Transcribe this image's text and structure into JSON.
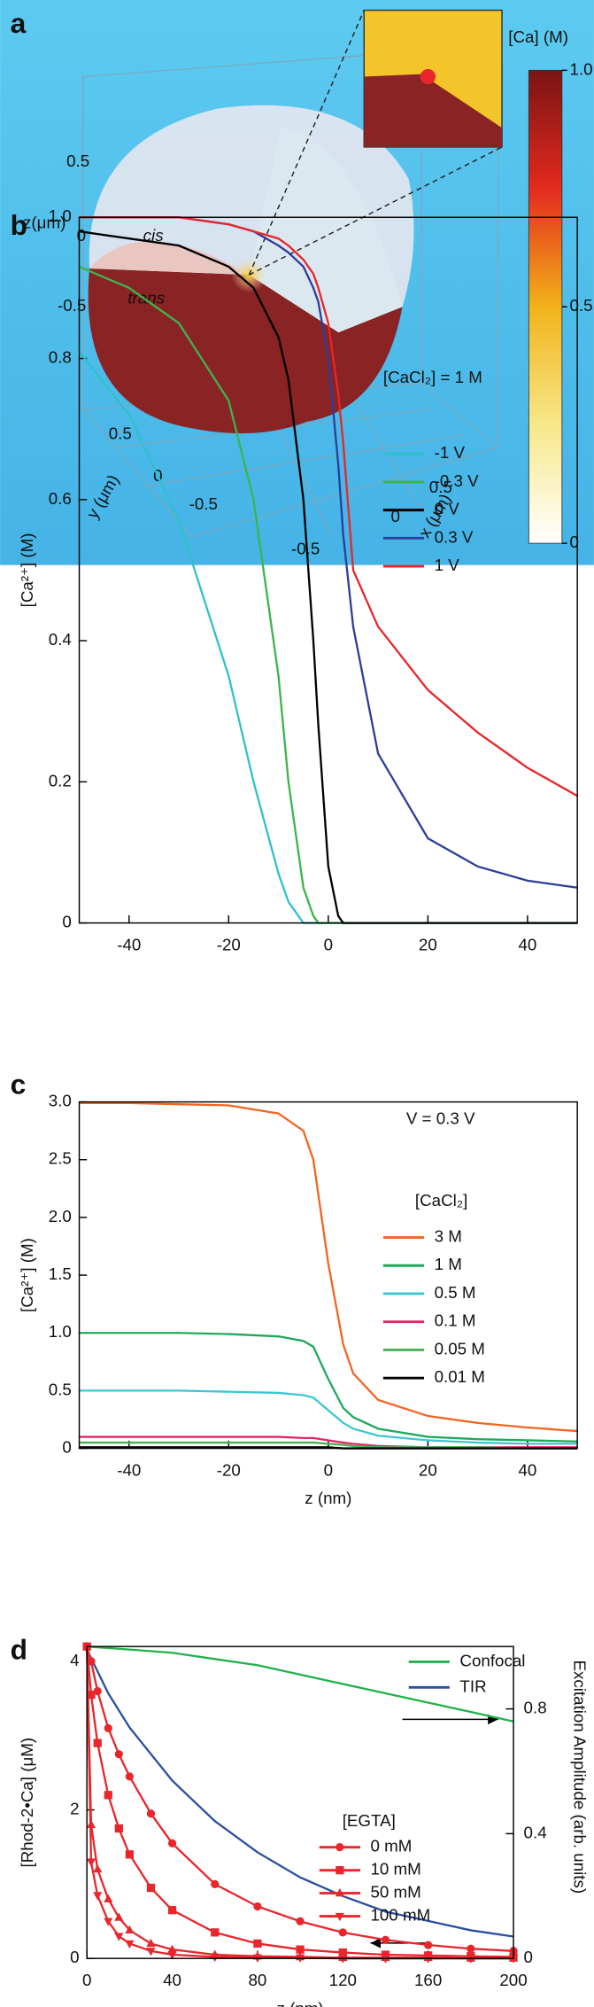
{
  "panel_a": {
    "label": "a",
    "colorbar": {
      "title": "[Ca] (M)",
      "lim": [
        0,
        1
      ],
      "ticks": [
        {
          "value": 1,
          "label": "1.0"
        },
        0.5,
        0
      ]
    },
    "axes": {
      "z": {
        "label": "z(μm)",
        "ticks": [
          0.5,
          0,
          -0.5
        ]
      },
      "y": {
        "label": "y (μm)",
        "ticks": [
          0.5,
          0,
          -0.5
        ]
      },
      "x": {
        "label": "x (μm)",
        "ticks": [
          0.5,
          0,
          -0.5
        ]
      }
    },
    "regions": [
      "cis",
      "trans"
    ]
  },
  "chart_data": [
    {
      "label": "b",
      "type": "line",
      "ylabel": "[Ca²⁺] (M)",
      "annotation": "[CaCl₂] = 1 M",
      "xlim": [
        -50,
        50
      ],
      "xticks": [
        -40,
        -20,
        0,
        20,
        40
      ],
      "ylim": [
        0,
        1
      ],
      "yticks": [
        0,
        0.2,
        0.4,
        0.6,
        0.8,
        {
          "value": 1,
          "label": "1.0"
        }
      ],
      "x": [
        -50,
        -40,
        -30,
        -20,
        -15,
        -10,
        -8,
        -5,
        -3,
        -2,
        0,
        2,
        3,
        5,
        10,
        20,
        30,
        40,
        50
      ],
      "series": [
        {
          "name": "-1 V",
          "color": "#2fc1c9",
          "values": [
            0.81,
            0.72,
            0.57,
            0.35,
            0.2,
            0.07,
            0.03,
            0,
            0,
            0,
            0,
            0,
            0,
            0,
            0,
            0,
            0,
            0,
            0
          ]
        },
        {
          "name": "-0.3 V",
          "color": "#3cb54a",
          "values": [
            0.93,
            0.9,
            0.85,
            0.74,
            0.6,
            0.35,
            0.2,
            0.05,
            0.01,
            0,
            0,
            0,
            0,
            0,
            0,
            0,
            0,
            0,
            0
          ]
        },
        {
          "name": "0 V",
          "color": "#000000",
          "values": [
            0.98,
            0.97,
            0.96,
            0.93,
            0.9,
            0.83,
            0.77,
            0.6,
            0.4,
            0.28,
            0.08,
            0.01,
            0,
            0,
            0,
            0,
            0,
            0,
            0
          ]
        },
        {
          "name": "0.3 V",
          "color": "#2c3e9a",
          "values": [
            1,
            1,
            1,
            0.99,
            0.98,
            0.96,
            0.95,
            0.93,
            0.9,
            0.88,
            0.8,
            0.65,
            0.55,
            0.42,
            0.24,
            0.12,
            0.08,
            0.06,
            0.05
          ]
        },
        {
          "name": "1 V",
          "color": "#e8262b",
          "values": [
            1,
            1,
            1,
            0.99,
            0.98,
            0.97,
            0.96,
            0.94,
            0.92,
            0.9,
            0.85,
            0.75,
            0.68,
            0.5,
            0.42,
            0.33,
            0.27,
            0.22,
            0.18
          ]
        }
      ]
    },
    {
      "label": "c",
      "type": "line",
      "ylabel": "[Ca²⁺] (M)",
      "xlabel": "z (nm)",
      "annotation": "V = 0.3 V",
      "legend_title": "[CaCl₂]",
      "xlim": [
        -50,
        50
      ],
      "xticks": [
        -40,
        -20,
        0,
        20,
        40
      ],
      "ylim": [
        0,
        3
      ],
      "yticks": [
        0,
        0.5,
        {
          "value": 1,
          "label": "1.0"
        },
        1.5,
        {
          "value": 2,
          "label": "2.0"
        },
        2.5,
        {
          "value": 3,
          "label": "3.0"
        }
      ],
      "x": [
        -50,
        -40,
        -30,
        -20,
        -10,
        -5,
        -3,
        0,
        3,
        5,
        10,
        20,
        30,
        40,
        50
      ],
      "series": [
        {
          "name": "3  M",
          "color": "#f26522",
          "values": [
            2.99,
            2.99,
            2.98,
            2.97,
            2.9,
            2.75,
            2.5,
            1.6,
            0.9,
            0.65,
            0.42,
            0.28,
            0.22,
            0.18,
            0.15
          ]
        },
        {
          "name": "1 M",
          "color": "#1fa95a",
          "values": [
            1,
            1,
            1,
            0.99,
            0.97,
            0.93,
            0.88,
            0.6,
            0.35,
            0.27,
            0.17,
            0.1,
            0.08,
            0.07,
            0.06
          ]
        },
        {
          "name": "0.5 M",
          "color": "#3dc6d3",
          "values": [
            0.5,
            0.5,
            0.5,
            0.49,
            0.48,
            0.46,
            0.44,
            0.33,
            0.22,
            0.17,
            0.11,
            0.07,
            0.05,
            0.04,
            0.04
          ]
        },
        {
          "name": "0.1 M",
          "color": "#e3256b",
          "values": [
            0.1,
            0.1,
            0.1,
            0.1,
            0.1,
            0.09,
            0.09,
            0.07,
            0.05,
            0.04,
            0.02,
            0.01,
            0.01,
            0.01,
            0.01
          ]
        },
        {
          "name": "0.05 M",
          "color": "#4caf50",
          "values": [
            0.05,
            0.05,
            0.05,
            0.05,
            0.05,
            0.05,
            0.05,
            0.04,
            0.03,
            0.02,
            0.01,
            0.01,
            0.01,
            0,
            0
          ]
        },
        {
          "name": "0.01 M",
          "color": "#000000",
          "values": [
            0.01,
            0.01,
            0.01,
            0.01,
            0.01,
            0.01,
            0.01,
            0.01,
            0,
            0,
            0,
            0,
            0,
            0,
            0
          ]
        }
      ]
    },
    {
      "label": "d",
      "type": "line",
      "ylabel": "[Rhod-2•Ca] (μM)",
      "y2label": "Excitation Amplitude (arb. units)",
      "xlabel": "z (nm)",
      "legend_title": "[EGTA]",
      "xlim": [
        0,
        200
      ],
      "xticks": [
        0,
        40,
        80,
        120,
        160,
        200
      ],
      "ylim": [
        0,
        4.2
      ],
      "yticks": [
        0,
        2,
        4
      ],
      "y2lim": [
        0,
        1
      ],
      "y2ticks": [
        0,
        0.4,
        0.8
      ],
      "series": [
        {
          "name": "Confocal",
          "color": "#22b24c",
          "axis": "y2",
          "x": [
            0,
            20,
            40,
            60,
            80,
            100,
            120,
            140,
            160,
            180,
            200
          ],
          "values": [
            1,
            0.99,
            0.98,
            0.96,
            0.94,
            0.91,
            0.88,
            0.85,
            0.82,
            0.79,
            0.76
          ]
        },
        {
          "name": "TIR",
          "color": "#2b4ea2",
          "axis": "y2",
          "x": [
            0,
            10,
            20,
            40,
            60,
            80,
            100,
            120,
            140,
            160,
            180,
            200
          ],
          "values": [
            0.99,
            0.85,
            0.74,
            0.57,
            0.44,
            0.34,
            0.26,
            0.2,
            0.15,
            0.12,
            0.09,
            0.07
          ]
        },
        {
          "name": "0 mM",
          "color": "#e8262b",
          "marker": "circle",
          "x": [
            0,
            2,
            5,
            10,
            15,
            20,
            30,
            40,
            60,
            80,
            100,
            120,
            140,
            160,
            180,
            200
          ],
          "values": [
            4.2,
            4,
            3.6,
            3.1,
            2.75,
            2.45,
            1.95,
            1.55,
            1,
            0.7,
            0.5,
            0.35,
            0.25,
            0.18,
            0.13,
            0.1
          ]
        },
        {
          "name": "10 mM",
          "color": "#e8262b",
          "marker": "square",
          "x": [
            0,
            2,
            5,
            10,
            15,
            20,
            30,
            40,
            60,
            80,
            100,
            120,
            140,
            160,
            180,
            200
          ],
          "values": [
            4.2,
            3.55,
            2.9,
            2.2,
            1.75,
            1.4,
            0.95,
            0.65,
            0.35,
            0.2,
            0.12,
            0.08,
            0.05,
            0.04,
            0.03,
            0.02
          ]
        },
        {
          "name": "50 mM",
          "color": "#e8262b",
          "marker": "triangle-up",
          "x": [
            0,
            2,
            5,
            10,
            15,
            20,
            30,
            40,
            60,
            80,
            100,
            120,
            140,
            160,
            180,
            200
          ],
          "values": [
            4.2,
            1.8,
            1.2,
            0.8,
            0.55,
            0.38,
            0.2,
            0.12,
            0.05,
            0.03,
            0.02,
            0.01,
            0.01,
            0.01,
            0,
            0
          ]
        },
        {
          "name": "100 mM",
          "color": "#e8262b",
          "marker": "triangle-down",
          "x": [
            0,
            2,
            5,
            10,
            15,
            20,
            30,
            40,
            60,
            80,
            100,
            120,
            140,
            160,
            180,
            200
          ],
          "values": [
            4.2,
            1.3,
            0.85,
            0.5,
            0.3,
            0.2,
            0.1,
            0.05,
            0.02,
            0.01,
            0.01,
            0,
            0,
            0,
            0,
            0
          ]
        }
      ]
    }
  ]
}
